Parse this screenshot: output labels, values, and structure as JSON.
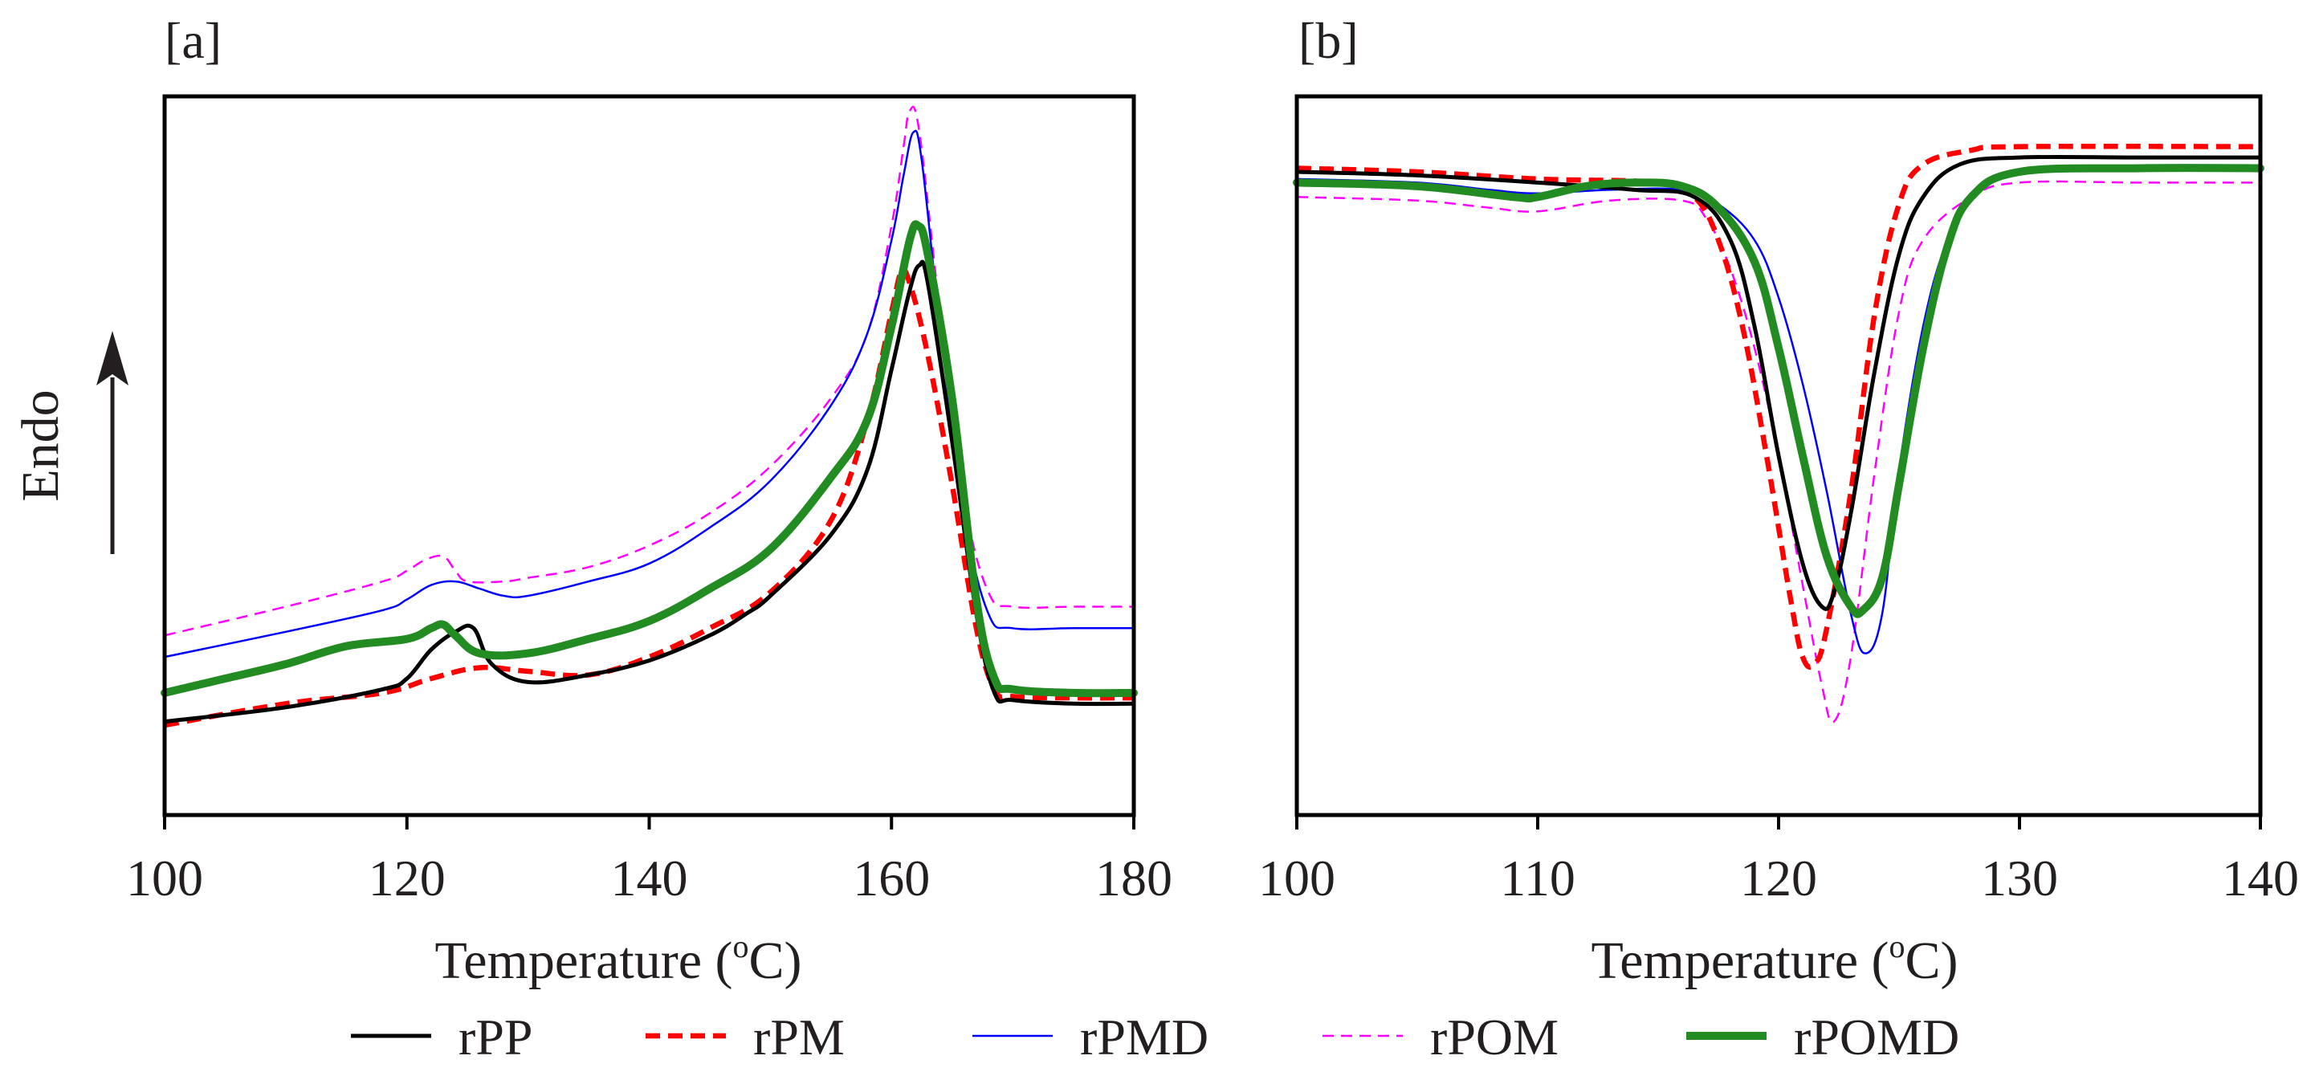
{
  "chart_data": [
    {
      "type": "line",
      "panel_label": "[a]",
      "xlabel": "Temperature (°C)",
      "xlabel_parts": {
        "before": "Temperature (",
        "sup": "o",
        "after": "C)"
      },
      "ylabel": "Endo",
      "xlim": [
        100,
        180
      ],
      "ylim": [
        0,
        100
      ],
      "xticks": [
        "100",
        "120",
        "140",
        "160",
        "180"
      ],
      "yticks_visible": false,
      "series": [
        {
          "name": "rPP",
          "color": "#000000",
          "style": "solid-medium",
          "points": [
            [
              100,
              13
            ],
            [
              110,
              15
            ],
            [
              118,
              17.5
            ],
            [
              120,
              19
            ],
            [
              122,
              23
            ],
            [
              124,
              25.5
            ],
            [
              125.5,
              26
            ],
            [
              127,
              21
            ],
            [
              130,
              18.5
            ],
            [
              135,
              19.5
            ],
            [
              140,
              21.5
            ],
            [
              145,
              25
            ],
            [
              148,
              28
            ],
            [
              150,
              30.5
            ],
            [
              155,
              39
            ],
            [
              158,
              48
            ],
            [
              160,
              62
            ],
            [
              161.5,
              73
            ],
            [
              162.3,
              76.5
            ],
            [
              163,
              74
            ],
            [
              165,
              52
            ],
            [
              167,
              28
            ],
            [
              168.5,
              17
            ],
            [
              170,
              16
            ],
            [
              175,
              15.5
            ],
            [
              180,
              15.5
            ]
          ]
        },
        {
          "name": "rPM",
          "color": "#ff0000",
          "style": "dashed-thick",
          "points": [
            [
              100,
              12.5
            ],
            [
              110,
              15.5
            ],
            [
              118,
              17
            ],
            [
              122,
              19
            ],
            [
              126,
              20.5
            ],
            [
              130,
              20
            ],
            [
              135,
              19.5
            ],
            [
              140,
              22
            ],
            [
              145,
              26
            ],
            [
              150,
              31
            ],
            [
              155,
              41
            ],
            [
              158,
              55
            ],
            [
              160,
              70
            ],
            [
              160.8,
              75.5
            ],
            [
              161.5,
              74
            ],
            [
              163,
              64
            ],
            [
              165,
              46
            ],
            [
              167,
              26
            ],
            [
              168.5,
              17.5
            ],
            [
              170,
              16.5
            ],
            [
              175,
              16.3
            ],
            [
              180,
              16.3
            ]
          ]
        },
        {
          "name": "rPMD",
          "color": "#0000ff",
          "style": "solid-thin",
          "points": [
            [
              100,
              22
            ],
            [
              110,
              25.5
            ],
            [
              118,
              28.5
            ],
            [
              120,
              30
            ],
            [
              122,
              32
            ],
            [
              124,
              32.5
            ],
            [
              126,
              31.5
            ],
            [
              128,
              30.5
            ],
            [
              130,
              30.5
            ],
            [
              135,
              32.5
            ],
            [
              140,
              35
            ],
            [
              145,
              40
            ],
            [
              150,
              46.5
            ],
            [
              155,
              57
            ],
            [
              158,
              67
            ],
            [
              160,
              80
            ],
            [
              161,
              89
            ],
            [
              161.8,
              95
            ],
            [
              162.5,
              91
            ],
            [
              164,
              68
            ],
            [
              166,
              42
            ],
            [
              168,
              28
            ],
            [
              170,
              26
            ],
            [
              175,
              26
            ],
            [
              180,
              26
            ]
          ]
        },
        {
          "name": "rPOM",
          "color": "#ff00ff",
          "style": "dashed-thin",
          "points": [
            [
              100,
              25
            ],
            [
              110,
              29
            ],
            [
              118,
              32.5
            ],
            [
              120,
              34
            ],
            [
              121.5,
              35.5
            ],
            [
              123,
              36
            ],
            [
              124,
              34
            ],
            [
              125,
              32.5
            ],
            [
              128,
              32.5
            ],
            [
              130,
              33
            ],
            [
              135,
              34.5
            ],
            [
              140,
              37.5
            ],
            [
              145,
              42
            ],
            [
              150,
              48.5
            ],
            [
              155,
              58
            ],
            [
              158,
              67
            ],
            [
              160,
              82
            ],
            [
              161,
              93
            ],
            [
              161.5,
              98
            ],
            [
              162.3,
              95
            ],
            [
              164,
              70
            ],
            [
              166,
              44
            ],
            [
              168,
              31
            ],
            [
              170,
              29
            ],
            [
              175,
              29
            ],
            [
              180,
              29
            ]
          ]
        },
        {
          "name": "rPOMD",
          "color": "#228b22",
          "style": "solid-thick",
          "points": [
            [
              100,
              17
            ],
            [
              105,
              19
            ],
            [
              110,
              21
            ],
            [
              115,
              23.5
            ],
            [
              120,
              24.5
            ],
            [
              122,
              26
            ],
            [
              123,
              26.5
            ],
            [
              124,
              25
            ],
            [
              126,
              22.5
            ],
            [
              130,
              22.5
            ],
            [
              135,
              24.5
            ],
            [
              140,
              27
            ],
            [
              145,
              31.5
            ],
            [
              150,
              37
            ],
            [
              155,
              47
            ],
            [
              158,
              55
            ],
            [
              160,
              68
            ],
            [
              161.5,
              80
            ],
            [
              162.2,
              82
            ],
            [
              163,
              78
            ],
            [
              165,
              58
            ],
            [
              167,
              30
            ],
            [
              168.5,
              19
            ],
            [
              170,
              17.5
            ],
            [
              175,
              17
            ],
            [
              180,
              17
            ]
          ]
        }
      ]
    },
    {
      "type": "line",
      "panel_label": "[b]",
      "xlabel": "Temperature (°C)",
      "xlabel_parts": {
        "before": "Temperature (",
        "sup": "o",
        "after": "C)"
      },
      "ylabel": "",
      "xlim": [
        100,
        140
      ],
      "ylim": [
        0,
        100
      ],
      "xticks": [
        "100",
        "110",
        "120",
        "130",
        "140"
      ],
      "yticks_visible": false,
      "series": [
        {
          "name": "rPP",
          "color": "#000000",
          "style": "solid-medium",
          "points": [
            [
              100,
              89.5
            ],
            [
              105,
              89
            ],
            [
              110,
              88
            ],
            [
              114,
              87
            ],
            [
              116.5,
              86
            ],
            [
              118,
              80
            ],
            [
              119,
              68
            ],
            [
              120,
              50
            ],
            [
              121,
              35
            ],
            [
              121.8,
              29
            ],
            [
              122.3,
              31
            ],
            [
              123,
              42
            ],
            [
              124,
              62
            ],
            [
              125,
              78
            ],
            [
              126,
              86
            ],
            [
              127.5,
              90.5
            ],
            [
              130,
              91.5
            ],
            [
              135,
              91.5
            ],
            [
              140,
              91.5
            ]
          ]
        },
        {
          "name": "rPM",
          "color": "#ff0000",
          "style": "dashed-thick",
          "points": [
            [
              100,
              90
            ],
            [
              105,
              89.5
            ],
            [
              110,
              88.5
            ],
            [
              115,
              88
            ],
            [
              116.5,
              86
            ],
            [
              117.5,
              80
            ],
            [
              118.5,
              68
            ],
            [
              119.5,
              50
            ],
            [
              120.5,
              30
            ],
            [
              121,
              22
            ],
            [
              121.5,
              21
            ],
            [
              122,
              26
            ],
            [
              123,
              45
            ],
            [
              124,
              70
            ],
            [
              125,
              85
            ],
            [
              126,
              90.5
            ],
            [
              128,
              92.5
            ],
            [
              130,
              93
            ],
            [
              140,
              93
            ]
          ]
        },
        {
          "name": "rPMD",
          "color": "#0000ff",
          "style": "solid-thin",
          "points": [
            [
              100,
              88.5
            ],
            [
              105,
              88
            ],
            [
              108,
              87
            ],
            [
              110,
              86.5
            ],
            [
              113,
              87
            ],
            [
              116,
              87
            ],
            [
              117.5,
              85
            ],
            [
              119,
              80
            ],
            [
              120,
              72
            ],
            [
              121,
              60
            ],
            [
              122,
              45
            ],
            [
              123,
              28
            ],
            [
              123.6,
              22.5
            ],
            [
              124.3,
              28
            ],
            [
              125,
              48
            ],
            [
              126,
              68
            ],
            [
              127,
              80
            ],
            [
              128,
              86
            ],
            [
              130,
              89.5
            ],
            [
              135,
              90
            ],
            [
              140,
              90
            ]
          ]
        },
        {
          "name": "rPOM",
          "color": "#ff00ff",
          "style": "dashed-thin",
          "points": [
            [
              100,
              86
            ],
            [
              105,
              85.5
            ],
            [
              108,
              84.5
            ],
            [
              110,
              84
            ],
            [
              113,
              85.5
            ],
            [
              116,
              85.5
            ],
            [
              117,
              83
            ],
            [
              118,
              76
            ],
            [
              119,
              65
            ],
            [
              120,
              50
            ],
            [
              121,
              32
            ],
            [
              121.8,
              18
            ],
            [
              122.3,
              13
            ],
            [
              123,
              22
            ],
            [
              124,
              48
            ],
            [
              125,
              70
            ],
            [
              126,
              80
            ],
            [
              128,
              86
            ],
            [
              130,
              88
            ],
            [
              135,
              88
            ],
            [
              140,
              88
            ]
          ]
        },
        {
          "name": "rPOMD",
          "color": "#228b22",
          "style": "solid-thick",
          "points": [
            [
              100,
              88
            ],
            [
              105,
              87.5
            ],
            [
              109,
              86
            ],
            [
              110,
              86
            ],
            [
              112,
              87.5
            ],
            [
              114,
              88
            ],
            [
              116,
              87.5
            ],
            [
              117.5,
              84.5
            ],
            [
              119,
              77
            ],
            [
              120,
              65
            ],
            [
              121,
              50
            ],
            [
              122,
              36
            ],
            [
              123,
              29
            ],
            [
              123.5,
              28.5
            ],
            [
              124.3,
              33
            ],
            [
              125,
              46
            ],
            [
              126,
              65
            ],
            [
              127,
              79
            ],
            [
              128,
              86
            ],
            [
              130,
              89.5
            ],
            [
              135,
              90
            ],
            [
              140,
              90
            ]
          ]
        }
      ]
    }
  ],
  "legend": [
    {
      "label": "rPP",
      "color": "#000000",
      "style": "solid-medium"
    },
    {
      "label": "rPM",
      "color": "#ff0000",
      "style": "dashed-thick"
    },
    {
      "label": "rPMD",
      "color": "#0000ff",
      "style": "solid-thin"
    },
    {
      "label": "rPOM",
      "color": "#ff00ff",
      "style": "dashed-thin"
    },
    {
      "label": "rPOMD",
      "color": "#228b22",
      "style": "solid-thick"
    }
  ]
}
